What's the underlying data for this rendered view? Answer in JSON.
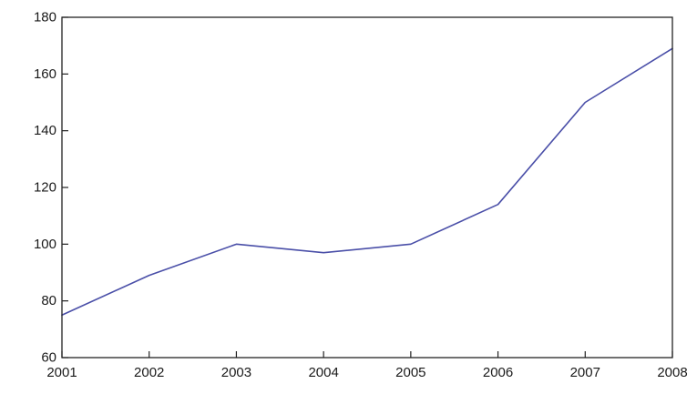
{
  "chart_data": {
    "type": "line",
    "title": "",
    "xlabel": "",
    "ylabel": "",
    "x": [
      2001,
      2002,
      2003,
      2004,
      2005,
      2006,
      2007,
      2008
    ],
    "series": [
      {
        "values": [
          75,
          89,
          100,
          97,
          100,
          114,
          150,
          169
        ]
      }
    ],
    "xlim": [
      2001,
      2008
    ],
    "ylim": [
      60,
      180
    ],
    "x_ticks": [
      "2001",
      "2002",
      "2003",
      "2004",
      "2005",
      "2006",
      "2007",
      "2008"
    ],
    "y_ticks": [
      "60",
      "80",
      "100",
      "120",
      "140",
      "160",
      "180"
    ],
    "grid": false,
    "legend": "none",
    "line_color": "#4a4fa8"
  }
}
